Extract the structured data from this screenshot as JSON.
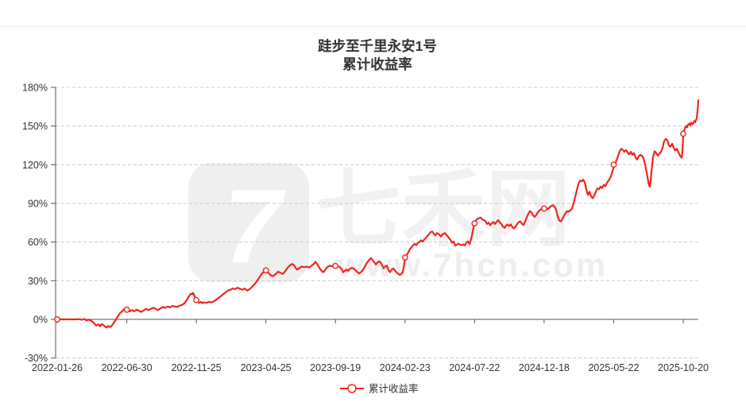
{
  "title": {
    "line1": "跬步至千里永安1号",
    "line2": "累计收益率"
  },
  "watermark": {
    "logo_glyph": "7",
    "site_name": "七禾网",
    "site_url": "www.7hcn.com"
  },
  "legend": {
    "label": "累计收益率"
  },
  "chart_data": {
    "type": "line",
    "title": "跬步至千里永安1号",
    "subtitle": "累计收益率",
    "series_name": "累计收益率",
    "line_color": "#f1251d",
    "marker_fill": "#ffffff",
    "grid_color": "#cccccc",
    "axis_color": "#555555",
    "label_color": "#333333",
    "grid": "dashed-horizontal",
    "legend_position": "bottom-center",
    "ylim": [
      -30,
      180
    ],
    "y_ticks": [
      {
        "label": "180%",
        "value": 180
      },
      {
        "label": "150%",
        "value": 150
      },
      {
        "label": "120%",
        "value": 120
      },
      {
        "label": "90%",
        "value": 90
      },
      {
        "label": "60%",
        "value": 60
      },
      {
        "label": "30%",
        "value": 30
      },
      {
        "label": "0%",
        "value": 0
      },
      {
        "label": "-30%",
        "value": -30
      }
    ],
    "x_tick_labels": [
      "2022-01-26",
      "2022-06-30",
      "2022-11-25",
      "2023-04-25",
      "2023-09-19",
      "2024-02-23",
      "2024-07-22",
      "2024-12-18",
      "2025-05-22",
      "2025-10-20"
    ],
    "markers_pct_at_ticks": [
      0,
      7.5,
      15,
      38,
      41.5,
      48,
      74.5,
      86,
      120,
      144
    ],
    "final_value_pct": 170,
    "points": [
      [
        72,
        0
      ],
      [
        85,
        0
      ],
      [
        95,
        0
      ],
      [
        100,
        0.2
      ],
      [
        103,
        -0.4
      ],
      [
        106,
        0.3
      ],
      [
        109,
        -0.8
      ],
      [
        112,
        -0.2
      ],
      [
        115,
        -1.2
      ],
      [
        118,
        -2.8
      ],
      [
        121,
        -4.8
      ],
      [
        124,
        -3.8
      ],
      [
        126,
        -5.4
      ],
      [
        128,
        -3.6
      ],
      [
        131,
        -4.8
      ],
      [
        134,
        -6.4
      ],
      [
        136,
        -5.2
      ],
      [
        138,
        -6
      ],
      [
        140,
        -5.4
      ],
      [
        142,
        -3.8
      ],
      [
        145,
        -1
      ],
      [
        148,
        2
      ],
      [
        151,
        4.8
      ],
      [
        154,
        6.4
      ],
      [
        157,
        8.4
      ],
      [
        160,
        7.5
      ],
      [
        163,
        6.2
      ],
      [
        166,
        7.2
      ],
      [
        169,
        6.2
      ],
      [
        172,
        7.6
      ],
      [
        175,
        6.6
      ],
      [
        178,
        5.8
      ],
      [
        181,
        7
      ],
      [
        184,
        8.2
      ],
      [
        187,
        7.2
      ],
      [
        190,
        8.2
      ],
      [
        193,
        9
      ],
      [
        196,
        8.2
      ],
      [
        199,
        7.2
      ],
      [
        202,
        8.6
      ],
      [
        205,
        9.6
      ],
      [
        208,
        9
      ],
      [
        211,
        10
      ],
      [
        214,
        9.4
      ],
      [
        217,
        10.4
      ],
      [
        220,
        10
      ],
      [
        223,
        9.6
      ],
      [
        226,
        10.6
      ],
      [
        229,
        11.2
      ],
      [
        232,
        12.4
      ],
      [
        235,
        15
      ],
      [
        238,
        18
      ],
      [
        240,
        20
      ],
      [
        242,
        19.4
      ],
      [
        243,
        20.6
      ],
      [
        245,
        18
      ],
      [
        247,
        15
      ],
      [
        249,
        13.6
      ],
      [
        251,
        12.8
      ],
      [
        253,
        13.6
      ],
      [
        255,
        12.6
      ],
      [
        257,
        13.2
      ],
      [
        260,
        12.8
      ],
      [
        263,
        13.6
      ],
      [
        266,
        13.2
      ],
      [
        269,
        14
      ],
      [
        272,
        15.2
      ],
      [
        275,
        16.6
      ],
      [
        278,
        18
      ],
      [
        281,
        19.6
      ],
      [
        284,
        21
      ],
      [
        287,
        22.4
      ],
      [
        290,
        23
      ],
      [
        293,
        24
      ],
      [
        296,
        23.4
      ],
      [
        299,
        24.6
      ],
      [
        302,
        23.8
      ],
      [
        305,
        23
      ],
      [
        308,
        24
      ],
      [
        311,
        22.4
      ],
      [
        314,
        23.4
      ],
      [
        317,
        25
      ],
      [
        320,
        27
      ],
      [
        323,
        29.4
      ],
      [
        326,
        32
      ],
      [
        329,
        35
      ],
      [
        332,
        37
      ],
      [
        335,
        38
      ],
      [
        338,
        36
      ],
      [
        341,
        34
      ],
      [
        344,
        33.6
      ],
      [
        347,
        35.2
      ],
      [
        350,
        37
      ],
      [
        353,
        36.2
      ],
      [
        356,
        35.2
      ],
      [
        359,
        37.4
      ],
      [
        362,
        40
      ],
      [
        365,
        42
      ],
      [
        368,
        43
      ],
      [
        370,
        42
      ],
      [
        372,
        40
      ],
      [
        374,
        38.6
      ],
      [
        377,
        40
      ],
      [
        380,
        41
      ],
      [
        383,
        40.4
      ],
      [
        386,
        41
      ],
      [
        389,
        40.2
      ],
      [
        392,
        41.6
      ],
      [
        395,
        43
      ],
      [
        397,
        44.6
      ],
      [
        399,
        43
      ],
      [
        401,
        41
      ],
      [
        403,
        39
      ],
      [
        405,
        37.4
      ],
      [
        407,
        36.6
      ],
      [
        409,
        38.2
      ],
      [
        412,
        40.6
      ],
      [
        415,
        41.6
      ],
      [
        418,
        41
      ],
      [
        421,
        41.4
      ],
      [
        423,
        41.5
      ],
      [
        426,
        41
      ],
      [
        428,
        40.4
      ],
      [
        430,
        39
      ],
      [
        432,
        36.6
      ],
      [
        434,
        37.6
      ],
      [
        436,
        38.6
      ],
      [
        438,
        37.6
      ],
      [
        440,
        39
      ],
      [
        443,
        40
      ],
      [
        446,
        39
      ],
      [
        449,
        37.2
      ],
      [
        452,
        35.6
      ],
      [
        455,
        37
      ],
      [
        458,
        39.6
      ],
      [
        461,
        43
      ],
      [
        464,
        45.6
      ],
      [
        467,
        47.6
      ],
      [
        469,
        46
      ],
      [
        471,
        44.4
      ],
      [
        473,
        42.6
      ],
      [
        475,
        44
      ],
      [
        477,
        45
      ],
      [
        479,
        44
      ],
      [
        481,
        42
      ],
      [
        483,
        39.6
      ],
      [
        485,
        41.2
      ],
      [
        487,
        41.6
      ],
      [
        489,
        38.2
      ],
      [
        491,
        36.6
      ],
      [
        493,
        38.6
      ],
      [
        495,
        39.6
      ],
      [
        497,
        38
      ],
      [
        499,
        36.6
      ],
      [
        501,
        35.4
      ],
      [
        503,
        34.6
      ],
      [
        505,
        35.2
      ],
      [
        507,
        36.8
      ],
      [
        508,
        40
      ],
      [
        510,
        48
      ],
      [
        512,
        50
      ],
      [
        514,
        52
      ],
      [
        516,
        54.6
      ],
      [
        518,
        56
      ],
      [
        520,
        57.4
      ],
      [
        522,
        58.6
      ],
      [
        524,
        57.6
      ],
      [
        526,
        59.4
      ],
      [
        528,
        60
      ],
      [
        530,
        61.4
      ],
      [
        532,
        60.2
      ],
      [
        534,
        62
      ],
      [
        536,
        63
      ],
      [
        539,
        65.4
      ],
      [
        542,
        67.6
      ],
      [
        544,
        68.2
      ],
      [
        546,
        66.6
      ],
      [
        548,
        65.2
      ],
      [
        550,
        67
      ],
      [
        552,
        66.4
      ],
      [
        555,
        64.2
      ],
      [
        557,
        66
      ],
      [
        560,
        67
      ],
      [
        562,
        65.6
      ],
      [
        564,
        64
      ],
      [
        567,
        61.6
      ],
      [
        569,
        59.4
      ],
      [
        571,
        60.4
      ],
      [
        573,
        57.2
      ],
      [
        575,
        58
      ],
      [
        577,
        58.6
      ],
      [
        579,
        58
      ],
      [
        581,
        57.6
      ],
      [
        583,
        58.2
      ],
      [
        585,
        57.4
      ],
      [
        587,
        59.6
      ],
      [
        589,
        60.6
      ],
      [
        591,
        58.4
      ],
      [
        593,
        62
      ],
      [
        595,
        68
      ],
      [
        597,
        74.5
      ],
      [
        599,
        76.6
      ],
      [
        601,
        78
      ],
      [
        603,
        78.6
      ],
      [
        605,
        79
      ],
      [
        607,
        77.6
      ],
      [
        609,
        77
      ],
      [
        611,
        76.4
      ],
      [
        613,
        74
      ],
      [
        615,
        75
      ],
      [
        617,
        73
      ],
      [
        619,
        74.6
      ],
      [
        621,
        75.6
      ],
      [
        623,
        74
      ],
      [
        625,
        75.6
      ],
      [
        627,
        77
      ],
      [
        629,
        75.4
      ],
      [
        631,
        74
      ],
      [
        633,
        72
      ],
      [
        635,
        71
      ],
      [
        637,
        72.6
      ],
      [
        639,
        73.6
      ],
      [
        641,
        72.4
      ],
      [
        643,
        73.6
      ],
      [
        645,
        71.6
      ],
      [
        647,
        70.6
      ],
      [
        649,
        72
      ],
      [
        651,
        74
      ],
      [
        653,
        75.6
      ],
      [
        655,
        76
      ],
      [
        657,
        74.2
      ],
      [
        659,
        73.2
      ],
      [
        661,
        76
      ],
      [
        663,
        79
      ],
      [
        665,
        82
      ],
      [
        667,
        84
      ],
      [
        669,
        83
      ],
      [
        671,
        80.6
      ],
      [
        673,
        79.6
      ],
      [
        675,
        81
      ],
      [
        677,
        83
      ],
      [
        679,
        84.6
      ],
      [
        681,
        85.4
      ],
      [
        683,
        86
      ],
      [
        686,
        86
      ],
      [
        688,
        86.4
      ],
      [
        690,
        85.6
      ],
      [
        692,
        87
      ],
      [
        694,
        88
      ],
      [
        696,
        88.6
      ],
      [
        698,
        87.6
      ],
      [
        700,
        85
      ],
      [
        702,
        80
      ],
      [
        704,
        76.6
      ],
      [
        706,
        76
      ],
      [
        708,
        78
      ],
      [
        710,
        80.6
      ],
      [
        712,
        82.6
      ],
      [
        714,
        84
      ],
      [
        716,
        83.6
      ],
      [
        718,
        84.6
      ],
      [
        720,
        86
      ],
      [
        722,
        90
      ],
      [
        724,
        95
      ],
      [
        726,
        100
      ],
      [
        728,
        105
      ],
      [
        730,
        107.6
      ],
      [
        732,
        107
      ],
      [
        734,
        108.4
      ],
      [
        736,
        106.4
      ],
      [
        738,
        101
      ],
      [
        740,
        96.6
      ],
      [
        742,
        99
      ],
      [
        744,
        95.4
      ],
      [
        746,
        94
      ],
      [
        748,
        96
      ],
      [
        750,
        99
      ],
      [
        752,
        101.6
      ],
      [
        754,
        101
      ],
      [
        756,
        103
      ],
      [
        758,
        102
      ],
      [
        760,
        104.4
      ],
      [
        762,
        103.4
      ],
      [
        764,
        106
      ],
      [
        766,
        107.6
      ],
      [
        768,
        109.6
      ],
      [
        770,
        113
      ],
      [
        772,
        117
      ],
      [
        774,
        120
      ],
      [
        776,
        123.4
      ],
      [
        778,
        127
      ],
      [
        780,
        130.4
      ],
      [
        782,
        132.4
      ],
      [
        784,
        131.4
      ],
      [
        786,
        130
      ],
      [
        788,
        131.4
      ],
      [
        790,
        129.4
      ],
      [
        792,
        128
      ],
      [
        794,
        130
      ],
      [
        796,
        127.6
      ],
      [
        798,
        129
      ],
      [
        800,
        125.6
      ],
      [
        802,
        124
      ],
      [
        804,
        126.6
      ],
      [
        806,
        127.6
      ],
      [
        808,
        127
      ],
      [
        810,
        125
      ],
      [
        812,
        120
      ],
      [
        814,
        114
      ],
      [
        816,
        107
      ],
      [
        817,
        104
      ],
      [
        818,
        103
      ],
      [
        819,
        107
      ],
      [
        820,
        115
      ],
      [
        822,
        126
      ],
      [
        824,
        130.4
      ],
      [
        826,
        129
      ],
      [
        828,
        127
      ],
      [
        830,
        128.6
      ],
      [
        832,
        130
      ],
      [
        834,
        133
      ],
      [
        836,
        138.4
      ],
      [
        838,
        140
      ],
      [
        840,
        139
      ],
      [
        842,
        135
      ],
      [
        844,
        134
      ],
      [
        846,
        136.2
      ],
      [
        848,
        133
      ],
      [
        850,
        131
      ],
      [
        852,
        132.4
      ],
      [
        854,
        129.6
      ],
      [
        856,
        127
      ],
      [
        858,
        125.4
      ],
      [
        859,
        130
      ],
      [
        860,
        144
      ],
      [
        861,
        146
      ],
      [
        862,
        148.4
      ],
      [
        864,
        150
      ],
      [
        865,
        149
      ],
      [
        866,
        151
      ],
      [
        868,
        152
      ],
      [
        869,
        150.4
      ],
      [
        870,
        152.6
      ],
      [
        872,
        151.4
      ],
      [
        874,
        154
      ],
      [
        875,
        153
      ],
      [
        876,
        154.6
      ],
      [
        877,
        156
      ],
      [
        878,
        162
      ],
      [
        879,
        170
      ]
    ]
  }
}
